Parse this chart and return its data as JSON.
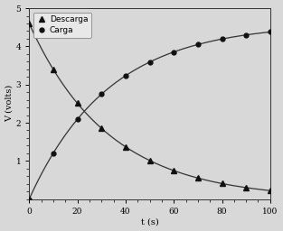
{
  "title": "",
  "xlabel": "t (s)",
  "ylabel": "V (volts)",
  "xlim": [
    0,
    100
  ],
  "ylim": [
    0,
    5
  ],
  "yticks": [
    1,
    2,
    3,
    4,
    5
  ],
  "xticks": [
    0,
    20,
    40,
    60,
    80,
    100
  ],
  "V0_discharge": 4.6,
  "V_max_charge": 4.6,
  "tau": 33,
  "legend_discharge": "Descarga",
  "legend_charge": "Carga",
  "marker_color": "#111111",
  "line_color": "#333333",
  "background_color": "#d8d8d8",
  "fig_facecolor": "#d8d8d8"
}
